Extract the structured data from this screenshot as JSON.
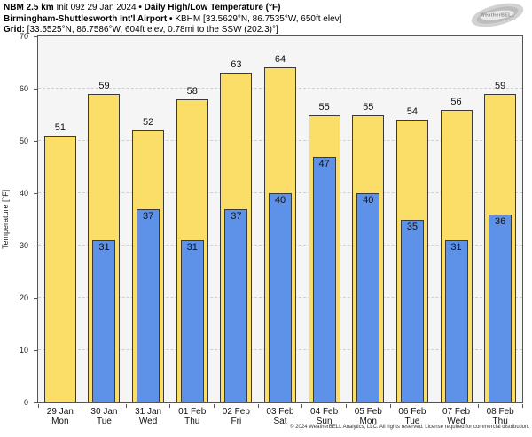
{
  "header": {
    "line1": {
      "model": "NBM 2.5 km",
      "init": "Init 09z 29 Jan 2024",
      "sep": "•",
      "product": "Daily High/Low Temperature (°F)"
    },
    "line2": {
      "station": "Birmingham-Shuttlesworth Int'l Airport",
      "sep": "•",
      "details": "KBHM [33.5629°N, 86.7535°W, 650ft elev]"
    },
    "line3": {
      "label": "Grid:",
      "details": "[33.5525°N, 86.7586°W, 604ft elev, 0.78mi to the SSW (202.3)°]"
    }
  },
  "logo": {
    "text": "WeatherBELL",
    "subtext": "Analytics LLC"
  },
  "chart_data": {
    "type": "bar",
    "title": "NBM 2.5 km Daily High/Low Temperature (°F) — KBHM Birmingham-Shuttlesworth Int'l Airport",
    "ylabel": "Temperature [°F]",
    "xlabel": "",
    "ylim": [
      0,
      70
    ],
    "yticks": [
      0,
      10,
      20,
      30,
      40,
      50,
      60,
      70
    ],
    "grid": true,
    "legend_position": "none",
    "plot_bg": "#f5f5f5",
    "categories": [
      {
        "date": "29 Jan",
        "day": "Mon"
      },
      {
        "date": "30 Jan",
        "day": "Tue"
      },
      {
        "date": "31 Jan",
        "day": "Wed"
      },
      {
        "date": "01 Feb",
        "day": "Thu"
      },
      {
        "date": "02 Feb",
        "day": "Fri"
      },
      {
        "date": "03 Feb",
        "day": "Sat"
      },
      {
        "date": "04 Feb",
        "day": "Sun"
      },
      {
        "date": "05 Feb",
        "day": "Mon"
      },
      {
        "date": "06 Feb",
        "day": "Tue"
      },
      {
        "date": "07 Feb",
        "day": "Wed"
      },
      {
        "date": "08 Feb",
        "day": "Thu"
      }
    ],
    "series": [
      {
        "name": "High",
        "color": "#FADE68",
        "values": [
          51,
          59,
          52,
          58,
          63,
          64,
          55,
          55,
          54,
          56,
          59
        ]
      },
      {
        "name": "Low",
        "color": "#5E92E8",
        "values": [
          null,
          31,
          37,
          31,
          37,
          40,
          47,
          40,
          35,
          31,
          36
        ]
      }
    ]
  },
  "footer": {
    "copyright": "© 2024 WeatherBELL Analytics, LLC. All rights reserved. License required for commercial distribution."
  }
}
